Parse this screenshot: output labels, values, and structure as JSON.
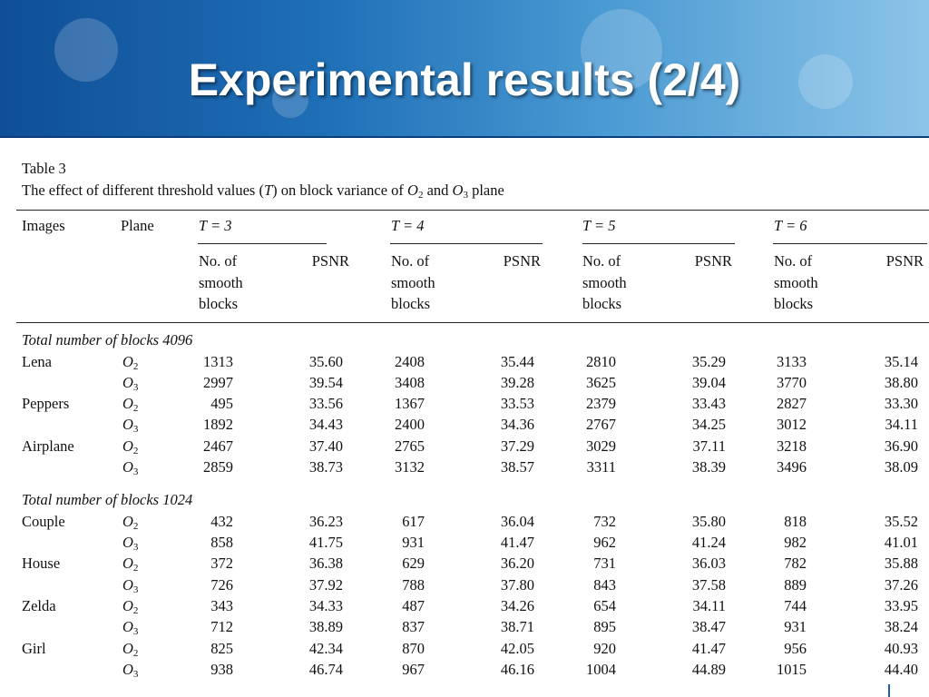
{
  "title": "Experimental results (2/4)",
  "table_label": "Table 3",
  "caption": {
    "text1": "The effect of different threshold values (",
    "var": "T",
    "text2": ") on block variance of ",
    "p1_letter": "O",
    "p1_sub": "2",
    "and": " and ",
    "p2_letter": "O",
    "p2_sub": "3",
    "text3": " plane"
  },
  "headers": {
    "images": "Images",
    "plane": "Plane",
    "thresholds": [
      "T = 3",
      "T = 4",
      "T = 5",
      "T = 6"
    ],
    "smooth_lines": [
      "No. of",
      "smooth",
      "blocks"
    ],
    "psnr": "PSNR"
  },
  "sections": [
    {
      "label": "Total number of blocks 4096",
      "rows": [
        {
          "image": "Lena",
          "plane": "2",
          "values": [
            "1313",
            "35.60",
            "2408",
            "35.44",
            "2810",
            "35.29",
            "3133",
            "35.14"
          ]
        },
        {
          "image": "",
          "plane": "3",
          "values": [
            "2997",
            "39.54",
            "3408",
            "39.28",
            "3625",
            "39.04",
            "3770",
            "38.80"
          ]
        },
        {
          "image": "Peppers",
          "plane": "2",
          "values": [
            "495",
            "33.56",
            "1367",
            "33.53",
            "2379",
            "33.43",
            "2827",
            "33.30"
          ]
        },
        {
          "image": "",
          "plane": "3",
          "values": [
            "1892",
            "34.43",
            "2400",
            "34.36",
            "2767",
            "34.25",
            "3012",
            "34.11"
          ]
        },
        {
          "image": "Airplane",
          "plane": "2",
          "values": [
            "2467",
            "37.40",
            "2765",
            "37.29",
            "3029",
            "37.11",
            "3218",
            "36.90"
          ]
        },
        {
          "image": "",
          "plane": "3",
          "values": [
            "2859",
            "38.73",
            "3132",
            "38.57",
            "3311",
            "38.39",
            "3496",
            "38.09"
          ]
        }
      ]
    },
    {
      "label": "Total number of blocks 1024",
      "rows": [
        {
          "image": "Couple",
          "plane": "2",
          "values": [
            "432",
            "36.23",
            "617",
            "36.04",
            "732",
            "35.80",
            "818",
            "35.52"
          ]
        },
        {
          "image": "",
          "plane": "3",
          "values": [
            "858",
            "41.75",
            "931",
            "41.47",
            "962",
            "41.24",
            "982",
            "41.01"
          ]
        },
        {
          "image": "House",
          "plane": "2",
          "values": [
            "372",
            "36.38",
            "629",
            "36.20",
            "731",
            "36.03",
            "782",
            "35.88"
          ]
        },
        {
          "image": "",
          "plane": "3",
          "values": [
            "726",
            "37.92",
            "788",
            "37.80",
            "843",
            "37.58",
            "889",
            "37.26"
          ]
        },
        {
          "image": "Zelda",
          "plane": "2",
          "values": [
            "343",
            "34.33",
            "487",
            "34.26",
            "654",
            "34.11",
            "744",
            "33.95"
          ]
        },
        {
          "image": "",
          "plane": "3",
          "values": [
            "712",
            "38.89",
            "837",
            "38.71",
            "895",
            "38.47",
            "931",
            "38.24"
          ]
        },
        {
          "image": "Girl",
          "plane": "2",
          "values": [
            "825",
            "42.34",
            "870",
            "42.05",
            "920",
            "41.47",
            "956",
            "40.93"
          ]
        },
        {
          "image": "",
          "plane": "3",
          "values": [
            "938",
            "46.74",
            "967",
            "46.16",
            "1004",
            "44.89",
            "1015",
            "44.40"
          ]
        }
      ]
    }
  ],
  "plane_letter": "O"
}
